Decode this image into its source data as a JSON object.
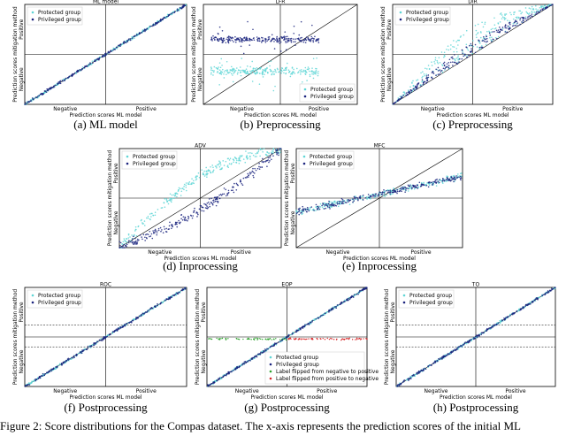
{
  "panels": [
    {
      "title": "ML model",
      "xlabel": "Prediction scores ML model",
      "ylabel": "Prediction scores mitigation method",
      "x_negative": "Negative",
      "x_positive": "Positive",
      "y_negative": "Negative",
      "y_positive": "Positive",
      "legend": [
        "Protected group",
        "Privileged group"
      ],
      "caption": "(a) ML model"
    },
    {
      "title": "LFR",
      "xlabel": "Prediction scores ML model",
      "ylabel": "Prediction scores mitigation method",
      "x_negative": "Negative",
      "x_positive": "Positive",
      "y_negative": "Negative",
      "y_positive": "Positive",
      "legend": [
        "Protected group",
        "Privileged group"
      ],
      "caption": "(b) Preprocessing"
    },
    {
      "title": "DIR",
      "xlabel": "Prediction scores ML model",
      "ylabel": "Prediction scores mitigation method",
      "x_negative": "Negative",
      "x_positive": "Positive",
      "y_negative": "Negative",
      "y_positive": "Positive",
      "legend": [
        "Protected group",
        "Privileged group"
      ],
      "caption": "(c) Preprocessing"
    },
    {
      "title": "ADV",
      "xlabel": "Prediction scores ML model",
      "ylabel": "Prediction scores mitigation method",
      "x_negative": "Negative",
      "x_positive": "Positive",
      "y_negative": "Negative",
      "y_positive": "Positive",
      "legend": [
        "Protected group",
        "Privileged group"
      ],
      "caption": "(d) Inprocessing"
    },
    {
      "title": "MFC",
      "xlabel": "Prediction scores ML model",
      "ylabel": "Prediction scores mitigation method",
      "x_negative": "Negative",
      "x_positive": "Positive",
      "y_negative": "Negative",
      "y_positive": "Positive",
      "legend": [
        "Protected group",
        "Privileged group"
      ],
      "caption": "(e) Inprocessing"
    },
    {
      "title": "ROC",
      "xlabel": "Prediction scores ML model",
      "ylabel": "Prediction scores mitigation method",
      "x_negative": "Negative",
      "x_positive": "Positive",
      "y_negative": "Negative",
      "y_positive": "Positive",
      "legend": [
        "Protected group",
        "Privileged group"
      ],
      "caption": "(f) Postprocessing"
    },
    {
      "title": "EOP",
      "xlabel": "Prediction scores ML model",
      "ylabel": "Prediction scores mitigation method",
      "x_negative": "Negative",
      "x_positive": "Positive",
      "y_negative": "Negative",
      "y_positive": "Positive",
      "legend": [
        "Protected group",
        "Privileged group",
        "Label flipped from negative to positive",
        "Label flipped from positive to negative"
      ],
      "caption": "(g) Postprocessing"
    },
    {
      "title": "TO",
      "xlabel": "Prediction scores ML model",
      "ylabel": "Prediction scores mitigation method",
      "x_negative": "Negative",
      "x_positive": "Positive",
      "y_negative": "Negative",
      "y_positive": "Positive",
      "legend": [
        "Protected group",
        "Privileged group"
      ],
      "caption": "(h) Postprocessing"
    }
  ],
  "figure_caption": "Figure 2: Score distributions for the Compas dataset. The x-axis represents the prediction scores of the initial ML"
}
